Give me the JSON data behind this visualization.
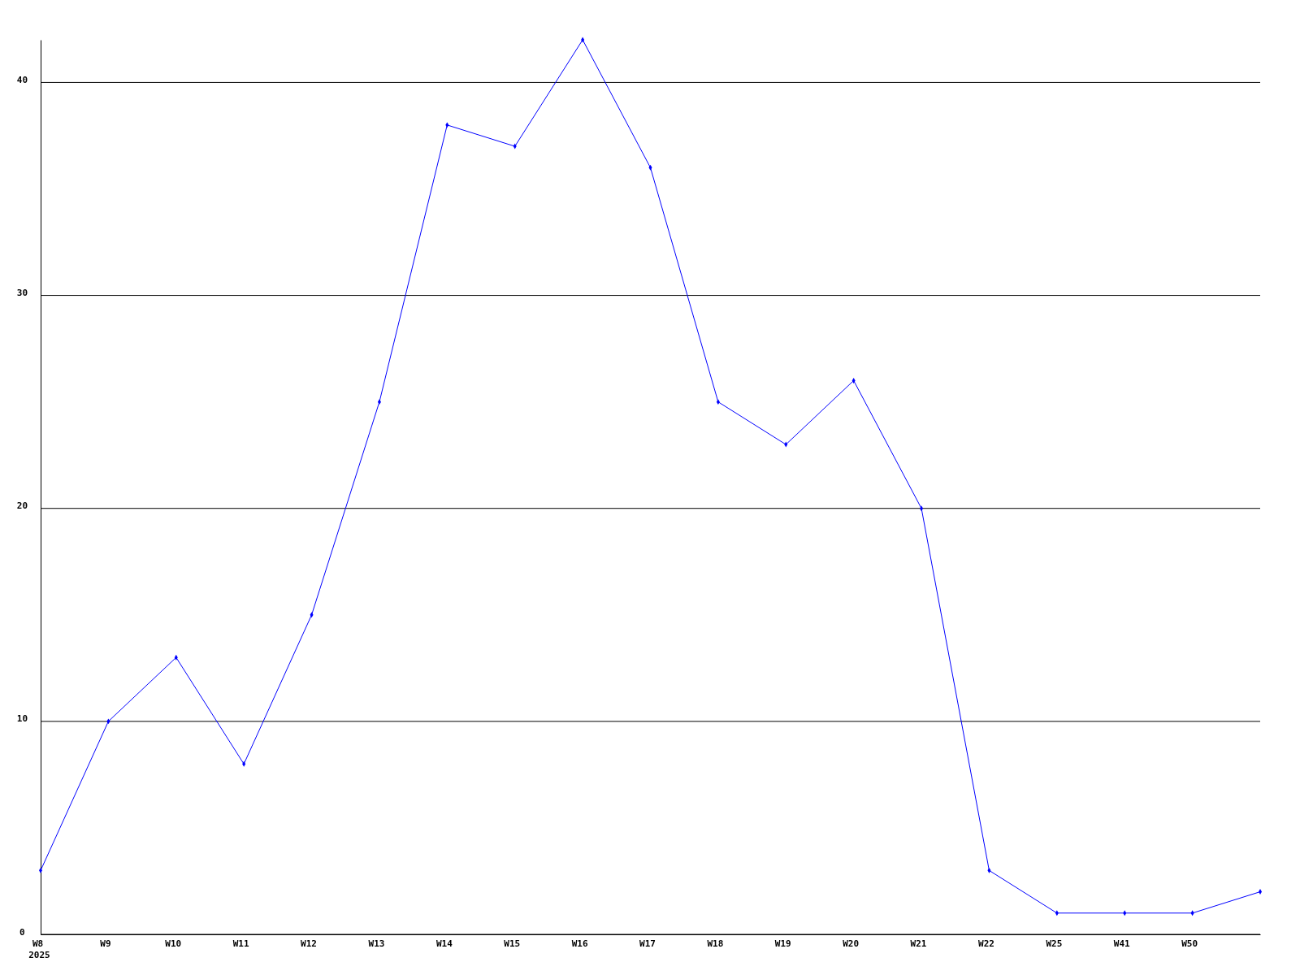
{
  "chart_data": {
    "type": "line",
    "categories": [
      "W8\n2025",
      "W9",
      "W10",
      "W11",
      "W12",
      "W13",
      "W14",
      "W15",
      "W16",
      "W17",
      "W18",
      "W19",
      "W20",
      "W21",
      "W22",
      "W25",
      "W41",
      "W50",
      null
    ],
    "series": [
      {
        "color": "#0000ff",
        "values": [
          3,
          10,
          13,
          8,
          15,
          25,
          38,
          37,
          42,
          36,
          25,
          23,
          26,
          20,
          3,
          1,
          1,
          1,
          2
        ]
      }
    ],
    "ylim": [
      0,
      42
    ],
    "yticks": [
      0,
      10,
      20,
      30,
      40
    ],
    "grid": "y",
    "marker": "diamond",
    "line_style": "solid"
  }
}
